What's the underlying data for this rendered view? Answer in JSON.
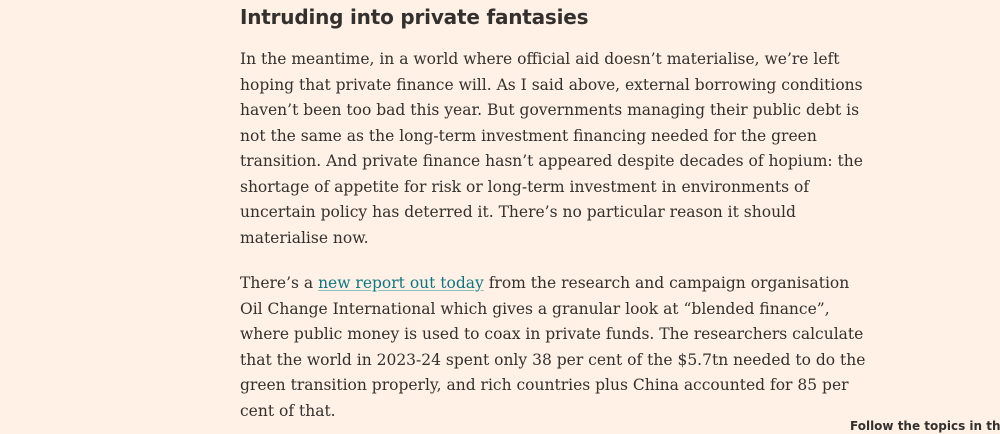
{
  "article": {
    "heading": "Intruding into private fantasies",
    "paragraph1": {
      "lines": [
        "In the meantime, in a world where official aid doesn’t materialise, we’re left",
        "hoping that private finance will. As I said above, external borrowing conditions",
        "haven’t been too bad this year. But governments managing their public debt is",
        "not the same as the long-term investment financing needed for the green",
        "transition. And private finance hasn’t appeared despite decades of hopium: the",
        "shortage of appetite for risk or long-term investment in environments of",
        "uncertain policy has deterred it. There’s no particular reason it should",
        "materialise now."
      ]
    },
    "paragraph2": {
      "line1_prefix": "There’s a ",
      "link_text": "new report out today",
      "line1_suffix": " from the research and campaign organisation",
      "lines": [
        "Oil Change International which gives a granular look at “blended finance”,",
        "where public money is used to coax in private funds. The researchers calculate",
        "that the world in 2023-24 spent only 38 per cent of the $5.7tn needed to do the",
        "green transition properly, and rich countries plus China accounted for 85 per",
        "cent of that."
      ]
    }
  },
  "sidebar": {
    "follow_topics": "Follow the topics in this ar"
  }
}
